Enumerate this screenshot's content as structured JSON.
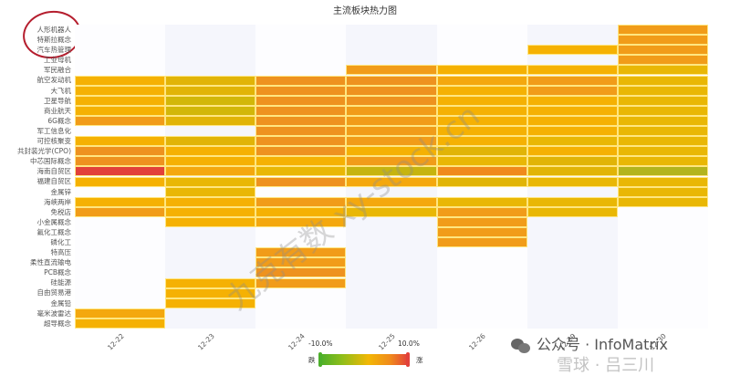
{
  "title": "主流板块热力图",
  "annotation": {
    "type": "red-circle",
    "target": "top-three-labels"
  },
  "watermarks": [
    "九克有数 xy-stock.cn"
  ],
  "footer": {
    "wechat_label": "公众号 · InfoMatrix",
    "overlay_label": "雪球 · 吕三川"
  },
  "visualmap": {
    "min_label": "-10.0%",
    "max_label": "10.0%",
    "low_text": "跌",
    "high_text": "涨",
    "low_color": "#4caf2a",
    "high_color": "#e2413a"
  },
  "chart_data": {
    "type": "heatmap",
    "title": "主流板块热力图",
    "x": [
      "12-22",
      "12-23",
      "12-24",
      "12-25",
      "12-26",
      "12-29",
      "12-30"
    ],
    "y": [
      "人形机器人",
      "特斯拉概念",
      "汽车热管理",
      "工业母机",
      "军民融合",
      "航空发动机",
      "大飞机",
      "卫星导航",
      "商业航天",
      "6G概念",
      "军工信息化",
      "可控核聚变",
      "共封装光学(CPO)",
      "中芯国际概念",
      "海南自贸区",
      "福建自贸区",
      "金属锌",
      "海峡两岸",
      "免税店",
      "小金属概念",
      "氟化工概念",
      "磷化工",
      "特高压",
      "柔性直流输电",
      "PCB概念",
      "硅能源",
      "自由贸易港",
      "金属铅",
      "毫米波雷达",
      "超导概念"
    ],
    "value_range": [
      -10.0,
      10.0
    ],
    "colors": {
      "A": "#f5b103",
      "B": "#e1b407",
      "C": "#d2b709",
      "D": "#ee921f",
      "E": "#f19c19",
      "F": "#e2413a",
      "G": "#f4a80e",
      "H": "#e9b705",
      "I": "#f08a1c",
      "J": "#c6b40f",
      "K": "#b3b41d",
      "L": "#f4a511"
    },
    "cells": [
      [
        "",
        "",
        "",
        "",
        "",
        "",
        "E"
      ],
      [
        "",
        "",
        "",
        "",
        "",
        "",
        "E"
      ],
      [
        "",
        "",
        "",
        "",
        "",
        "A",
        "E"
      ],
      [
        "",
        "",
        "",
        "",
        "",
        "",
        "E"
      ],
      [
        "",
        "",
        "",
        "E",
        "A",
        "A",
        "H"
      ],
      [
        "A",
        "B",
        "D",
        "D",
        "G",
        "E",
        "H"
      ],
      [
        "A",
        "B",
        "D",
        "D",
        "A",
        "E",
        "H"
      ],
      [
        "A",
        "C",
        "D",
        "D",
        "A",
        "A",
        "H"
      ],
      [
        "A",
        "C",
        "D",
        "E",
        "A",
        "A",
        "H"
      ],
      [
        "E",
        "B",
        "D",
        "E",
        "A",
        "A",
        "H"
      ],
      [
        "",
        "",
        "D",
        "E",
        "A",
        "A",
        "H"
      ],
      [
        "A",
        "B",
        "D",
        "E",
        "A",
        "H",
        "H"
      ],
      [
        "D",
        "A",
        "D",
        "A",
        "B",
        "A",
        "H"
      ],
      [
        "D",
        "A",
        "A",
        "E",
        "H",
        "B",
        "H"
      ],
      [
        "F",
        "G",
        "H",
        "J",
        "I",
        "B",
        "K"
      ],
      [
        "A",
        "H",
        "D",
        "G",
        "B",
        "H",
        "H"
      ],
      [
        "",
        "H",
        "",
        "",
        "",
        "",
        "H"
      ],
      [
        "A",
        "A",
        "E",
        "G",
        "H",
        "H",
        "H"
      ],
      [
        "E",
        "A",
        "A",
        "H",
        "E",
        "H",
        ""
      ],
      [
        "",
        "A",
        "G",
        "",
        "E",
        "",
        ""
      ],
      [
        "",
        "",
        "",
        "",
        "E",
        "",
        ""
      ],
      [
        "",
        "",
        "",
        "",
        "E",
        "",
        ""
      ],
      [
        "",
        "",
        "E",
        "",
        "",
        "",
        ""
      ],
      [
        "",
        "",
        "E",
        "",
        "",
        "",
        ""
      ],
      [
        "",
        "",
        "D",
        "",
        "",
        "",
        ""
      ],
      [
        "",
        "A",
        "E",
        "",
        "",
        "",
        ""
      ],
      [
        "",
        "A",
        "",
        "",
        "",
        "",
        ""
      ],
      [
        "",
        "A",
        "",
        "",
        "",
        "",
        ""
      ],
      [
        "G",
        "",
        "",
        "",
        "",
        "",
        ""
      ],
      [
        "A",
        "",
        "",
        "",
        "",
        "",
        ""
      ]
    ],
    "legend": {
      "type": "continuous",
      "min": "-10.0%",
      "max": "10.0%",
      "low": "跌",
      "high": "涨",
      "position": "bottom-center"
    },
    "grid": false
  }
}
